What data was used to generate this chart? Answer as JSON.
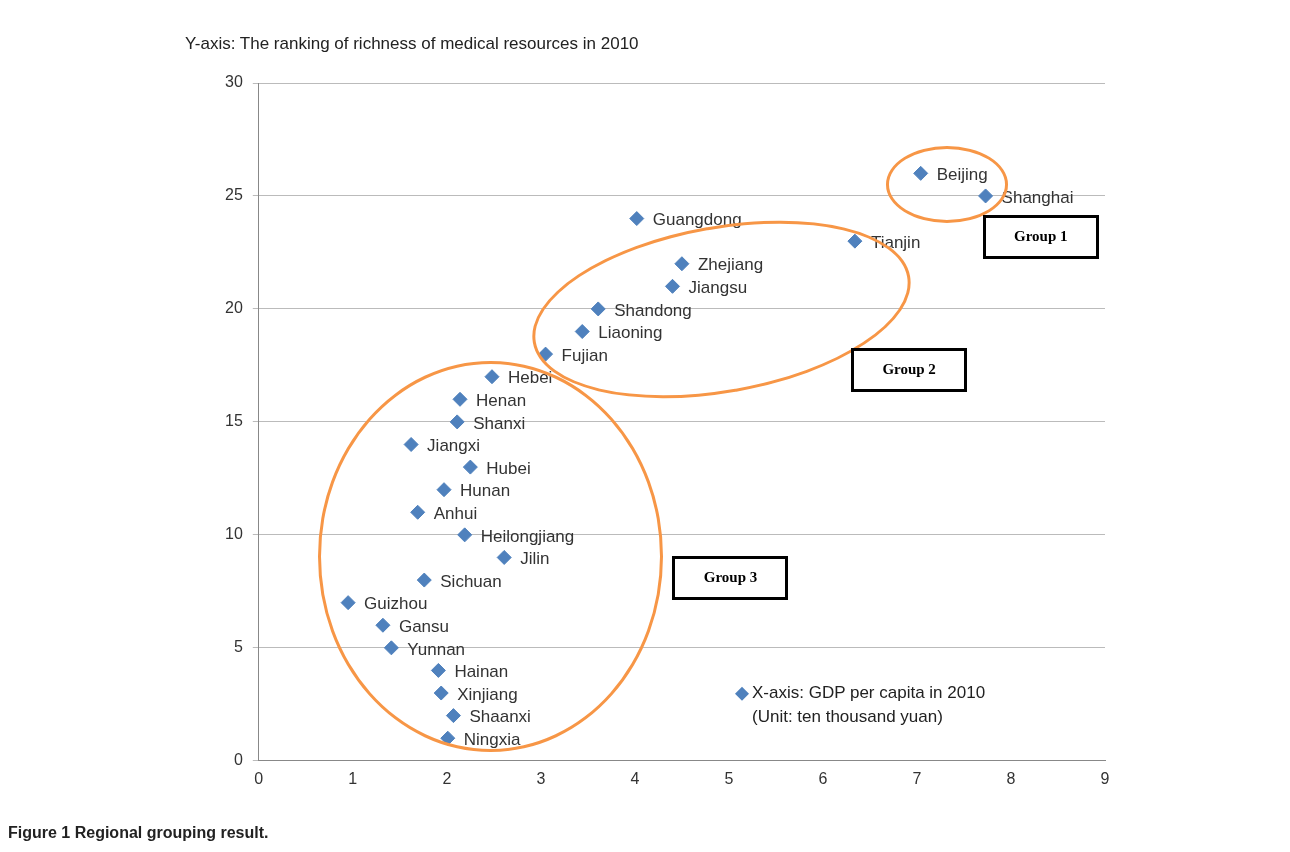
{
  "chart_data": {
    "type": "scatter",
    "ylabel": "Y-axis: The ranking of richness of medical resources in 2010",
    "series": [
      {
        "name": "X-axis: GDP per capita in 2010 (Unit: ten thousand yuan)",
        "color": "#4f81bd",
        "x": [
          7.04,
          7.73,
          4.02,
          6.34,
          4.5,
          4.4,
          3.61,
          3.44,
          3.05,
          2.48,
          2.14,
          2.11,
          1.62,
          2.25,
          1.97,
          1.69,
          2.19,
          2.61,
          1.76,
          0.95,
          1.32,
          1.41,
          1.91,
          1.94,
          2.07,
          2.01
        ],
        "values": [
          26,
          25,
          24,
          23,
          22,
          21,
          20,
          19,
          18,
          17,
          16,
          15,
          14,
          13,
          12,
          11,
          10,
          9,
          8,
          7,
          6,
          5,
          4,
          3,
          2,
          1
        ]
      }
    ],
    "xlim": [
      0,
      9
    ],
    "xticks": [
      0,
      1,
      2,
      3,
      4,
      5,
      6,
      7,
      8,
      9
    ],
    "ylim": [
      0,
      30
    ],
    "yticks": [
      0,
      5,
      10,
      15,
      20,
      25,
      30
    ],
    "grid": "y",
    "marker": "diamond",
    "legend": "bottom right",
    "annotations": [
      {
        "text": "Beijing",
        "x": 7.04,
        "y": 26
      },
      {
        "text": "Shanghai",
        "x": 7.73,
        "y": 25
      },
      {
        "text": "Guangdong",
        "x": 4.02,
        "y": 24
      },
      {
        "text": "Tianjin",
        "x": 6.34,
        "y": 23
      },
      {
        "text": "Zhejiang",
        "x": 4.5,
        "y": 22
      },
      {
        "text": "Jiangsu",
        "x": 4.4,
        "y": 21
      },
      {
        "text": "Shandong",
        "x": 3.61,
        "y": 20
      },
      {
        "text": "Liaoning",
        "x": 3.44,
        "y": 19
      },
      {
        "text": "Fujian",
        "x": 3.05,
        "y": 18
      },
      {
        "text": "Hebei",
        "x": 2.48,
        "y": 17
      },
      {
        "text": "Henan",
        "x": 2.14,
        "y": 16
      },
      {
        "text": "Shanxi",
        "x": 2.11,
        "y": 15
      },
      {
        "text": "Jiangxi",
        "x": 1.62,
        "y": 14
      },
      {
        "text": "Hubei",
        "x": 2.25,
        "y": 13
      },
      {
        "text": "Hunan",
        "x": 1.97,
        "y": 12
      },
      {
        "text": "Anhui",
        "x": 1.69,
        "y": 11
      },
      {
        "text": "Heilongjiang",
        "x": 2.19,
        "y": 10
      },
      {
        "text": "Jilin",
        "x": 2.61,
        "y": 9
      },
      {
        "text": "Sichuan",
        "x": 1.76,
        "y": 8
      },
      {
        "text": "Guizhou",
        "x": 0.95,
        "y": 7
      },
      {
        "text": "Gansu",
        "x": 1.32,
        "y": 6
      },
      {
        "text": "Yunnan",
        "x": 1.41,
        "y": 5
      },
      {
        "text": "Hainan",
        "x": 1.91,
        "y": 4
      },
      {
        "text": "Xinjiang",
        "x": 1.94,
        "y": 3
      },
      {
        "text": "Shaanxi",
        "x": 2.07,
        "y": 2
      },
      {
        "text": "Ningxia",
        "x": 2.01,
        "y": 1
      },
      "Group 1",
      "Group 2",
      "Group 3",
      "Figure 1 Regional grouping result."
    ]
  }
}
